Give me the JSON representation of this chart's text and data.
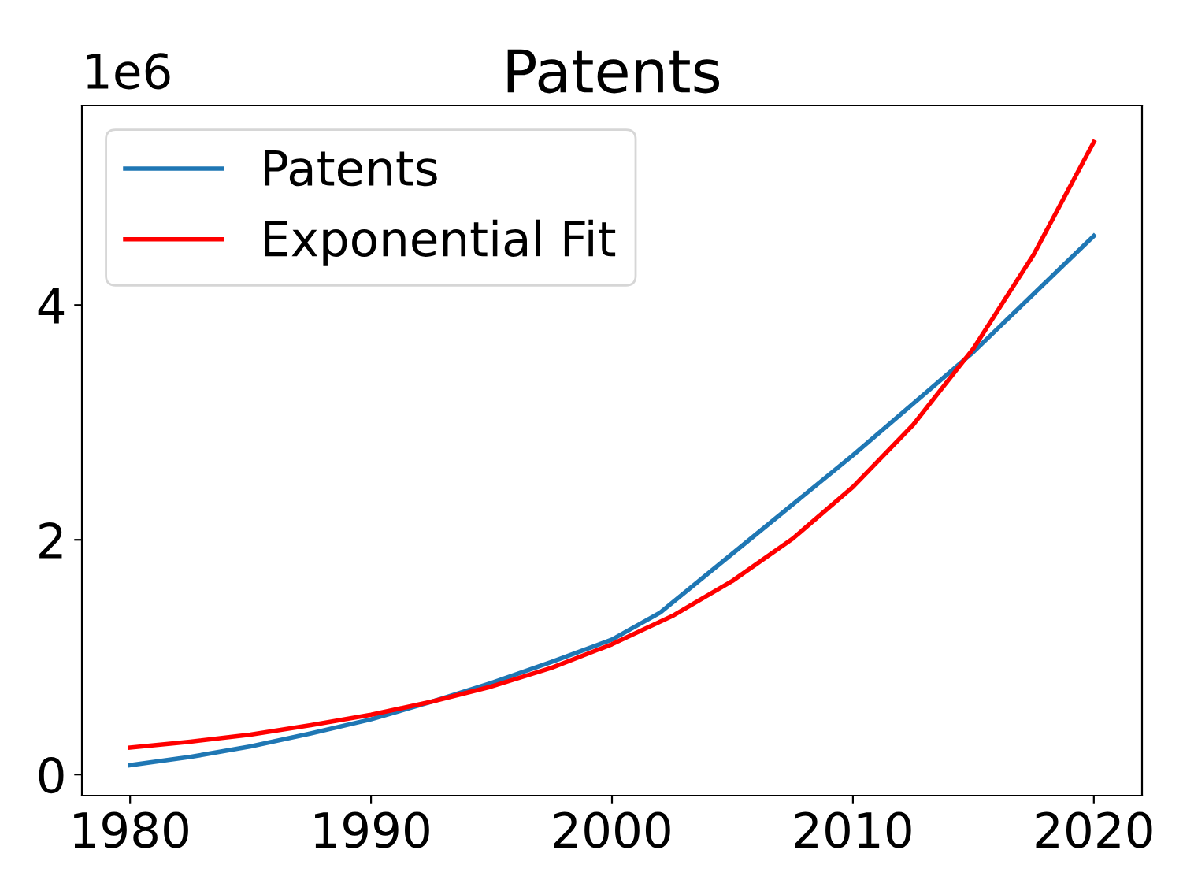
{
  "chart_data": {
    "type": "line",
    "title": "Patents",
    "annotations": [
      "1e6"
    ],
    "series": [
      {
        "name": "Patents",
        "color": "#1f77b4",
        "x": [
          1980,
          1982.5,
          1985,
          1987.5,
          1990,
          1992.5,
          1995,
          1997.5,
          2000,
          2002,
          2006,
          2010,
          2015,
          2020
        ],
        "values": [
          0.08,
          0.15,
          0.24,
          0.35,
          0.47,
          0.62,
          0.78,
          0.96,
          1.15,
          1.38,
          2.05,
          2.72,
          3.6,
          4.59
        ]
      },
      {
        "name": "Exponential Fit",
        "color": "#ff0000",
        "x": [
          1980,
          1982.5,
          1985,
          1987.5,
          1990,
          1992.5,
          1995,
          1997.5,
          2000,
          2002.5,
          2005,
          2007.5,
          2010,
          2012.5,
          2015,
          2017.5,
          2020
        ],
        "values": [
          0.23,
          0.28,
          0.34,
          0.42,
          0.51,
          0.62,
          0.75,
          0.91,
          1.11,
          1.35,
          1.65,
          2.01,
          2.45,
          2.98,
          3.63,
          4.43,
          5.39
        ]
      }
    ],
    "xlim": [
      1978,
      2022
    ],
    "xticks": [
      1980,
      1990,
      2000,
      2010,
      2020
    ],
    "ylim": [
      -0.18,
      5.7
    ],
    "yticks": [
      0,
      2,
      4
    ],
    "grid": false,
    "legend": "top left",
    "line_style": "solid",
    "marker": "none"
  }
}
